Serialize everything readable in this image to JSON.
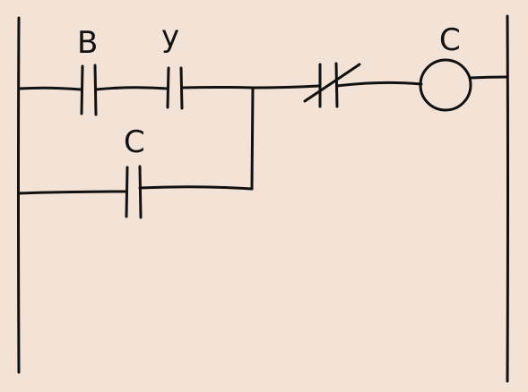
{
  "colors": {
    "background": "#f3e3d7",
    "ink": "#111111"
  },
  "diagram": {
    "type": "ladder-logic",
    "rungs": [
      {
        "elements": [
          {
            "kind": "contact-no",
            "label": "B"
          },
          {
            "kind": "contact-no",
            "label": "y"
          },
          {
            "kind": "contact-nc",
            "label": ""
          },
          {
            "kind": "coil",
            "label": "C"
          }
        ],
        "parallel_branch": [
          {
            "kind": "contact-no",
            "label": "C"
          }
        ]
      }
    ]
  },
  "labels": {
    "contact_b": "B",
    "contact_y": "y",
    "contact_c_seal": "C",
    "coil_c": "C"
  }
}
